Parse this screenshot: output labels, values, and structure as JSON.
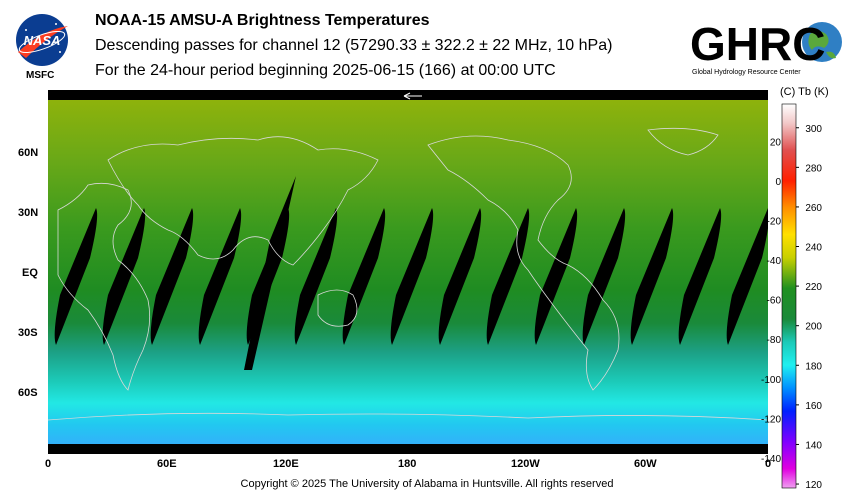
{
  "header": {
    "title": "NOAA-15 AMSU-A Brightness Temperatures",
    "subtitle_pass": "Descending passes for channel 12 (57290.33 ± 322.2 ± 22 MHz, 10 hPa)",
    "subtitle_period": "For the 24-hour period beginning 2025-06-15 (166) at 00:00 UTC"
  },
  "logos": {
    "nasa_text": "NASA",
    "msfc_text": "MSFC",
    "ghrc_text": "GHRC",
    "ghrc_caption": "Global Hydrology Resource Center"
  },
  "map": {
    "lat_labels": [
      "60N",
      "30N",
      "EQ",
      "30S",
      "60S"
    ],
    "lon_labels": [
      "0",
      "60E",
      "120E",
      "180",
      "120W",
      "60W",
      "0"
    ],
    "swath_count": 15
  },
  "colorbar": {
    "units_label": "(C)  Tb  (K)",
    "celsius_ticks": [
      "20",
      "0",
      "-20",
      "-40",
      "-60",
      "-80",
      "-100",
      "-120",
      "-140"
    ],
    "kelvin_ticks": [
      "300",
      "280",
      "260",
      "240",
      "220",
      "200",
      "180",
      "160",
      "140",
      "120"
    ]
  },
  "footer": {
    "copyright": "Copyright © 2025 The University of Alabama in Huntsville.  All rights reserved"
  }
}
